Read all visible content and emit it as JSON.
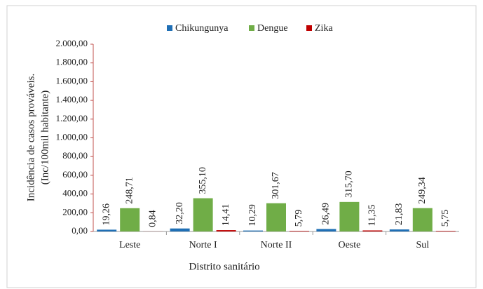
{
  "chart_data": {
    "type": "bar",
    "categories": [
      "Leste",
      "Norte I",
      "Norte II",
      "Oeste",
      "Sul"
    ],
    "series": [
      {
        "name": "Chikungunya",
        "color": "#1f6fb5",
        "values": [
          19.26,
          32.2,
          10.29,
          26.49,
          21.83
        ],
        "value_labels": [
          "19,26",
          "32,20",
          "10,29",
          "26,49",
          "21,83"
        ]
      },
      {
        "name": "Dengue",
        "color": "#70ad47",
        "values": [
          248.71,
          355.1,
          301.67,
          315.7,
          249.34
        ],
        "value_labels": [
          "248,71",
          "355,10",
          "301,67",
          "315,70",
          "249,34"
        ]
      },
      {
        "name": "Zika",
        "color": "#c00000",
        "values": [
          0.84,
          14.41,
          5.79,
          11.35,
          5.75
        ],
        "value_labels": [
          "0,84",
          "14,41",
          "5,79",
          "11,35",
          "5,75"
        ]
      }
    ],
    "ylabel": [
      "Incidência de casos prováveis.",
      "(Inc/100mil habitante)"
    ],
    "xlabel": "Distrito sanitário",
    "ylim": [
      0,
      2000
    ],
    "yticks": [
      {
        "value": 0,
        "label": "0,00"
      },
      {
        "value": 200,
        "label": "200,00"
      },
      {
        "value": 400,
        "label": "400,00"
      },
      {
        "value": 600,
        "label": "600,00"
      },
      {
        "value": 800,
        "label": "800,00"
      },
      {
        "value": 1000,
        "label": "1.000,00"
      },
      {
        "value": 1200,
        "label": "1.200,00"
      },
      {
        "value": 1400,
        "label": "1.400,00"
      },
      {
        "value": 1600,
        "label": "1.600,00"
      },
      {
        "value": 1800,
        "label": "1.800,00"
      },
      {
        "value": 2000,
        "label": "2.000,00"
      }
    ],
    "legend": "top"
  }
}
